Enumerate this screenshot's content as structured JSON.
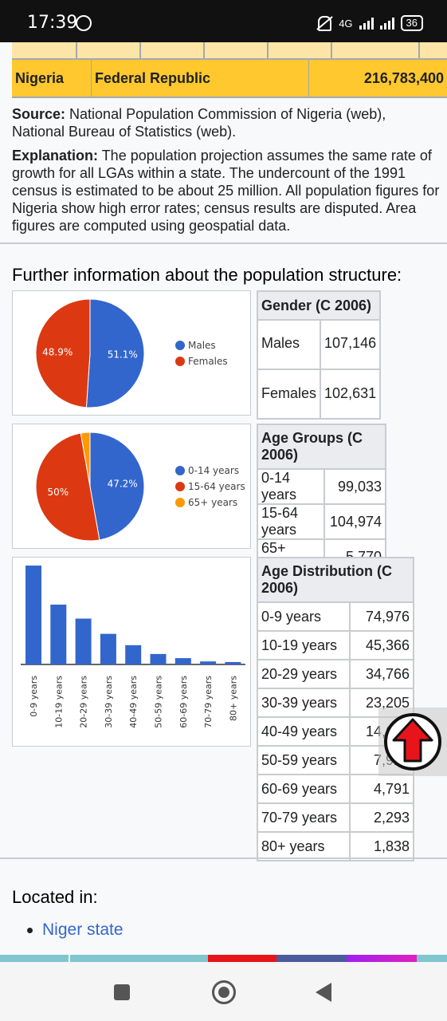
{
  "status_bar": {
    "time": "17:39",
    "network": "4G",
    "battery": "36"
  },
  "population_table": {
    "row": {
      "name": "Nigeria",
      "status": "Federal Republic",
      "population": "216,783,400"
    }
  },
  "source": {
    "label": "Source:",
    "text": " National Population Commission of Nigeria (web), National Bureau of Statistics (web)."
  },
  "explanation": {
    "label": "Explanation:",
    "text": " The population projection assumes the same rate of growth for all LGAs within a state. The undercount of the 1991 census is estimated to be about 25 million. All population figures for Nigeria show high error rates; census results are disputed. Area figures are computed using geospatial data."
  },
  "further_heading": "Further information about the population structure:",
  "gender": {
    "title": "Gender (C 2006)",
    "rows": [
      {
        "label": "Males",
        "value": "107,146"
      },
      {
        "label": "Females",
        "value": "102,631"
      }
    ]
  },
  "age_groups": {
    "title": "Age Groups (C 2006)",
    "rows": [
      {
        "label": "0-14 years",
        "value": "99,033"
      },
      {
        "label": "15-64 years",
        "value": "104,974"
      },
      {
        "label": "65+ years",
        "value": "5,770"
      }
    ]
  },
  "age_distribution": {
    "title": "Age Distribution (C 2006)",
    "rows": [
      {
        "label": "0-9 years",
        "value": "74,976"
      },
      {
        "label": "10-19 years",
        "value": "45,366"
      },
      {
        "label": "20-29 years",
        "value": "34,766"
      },
      {
        "label": "30-39 years",
        "value": "23,205"
      },
      {
        "label": "40-49 years",
        "value": "14,614"
      },
      {
        "label": "50-59 years",
        "value": "7,920"
      },
      {
        "label": "60-69 years",
        "value": "4,791"
      },
      {
        "label": "70-79 years",
        "value": "2,293"
      },
      {
        "label": "80+ years",
        "value": "1,838"
      }
    ]
  },
  "located_in": {
    "heading": "Located in:",
    "items": [
      "Niger state"
    ]
  },
  "colors": {
    "blue": "#3366cc",
    "red": "#dc3912",
    "orange": "#ff9900",
    "highlight": "#ffc82e"
  },
  "chart_data": [
    {
      "type": "pie",
      "labels": [
        "Males",
        "Females"
      ],
      "values": [
        107146,
        102631
      ],
      "slice_labels": [
        "51.1%",
        "48.9%"
      ],
      "colors": [
        "#3366cc",
        "#dc3912"
      ]
    },
    {
      "type": "pie",
      "labels": [
        "0-14 years",
        "15-64 years",
        "65+ years"
      ],
      "values": [
        99033,
        104974,
        5770
      ],
      "slice_labels": [
        "47.2%",
        "50%",
        ""
      ],
      "colors": [
        "#3366cc",
        "#dc3912",
        "#ff9900"
      ]
    },
    {
      "type": "bar",
      "categories": [
        "0-9 years",
        "10-19 years",
        "20-29 years",
        "30-39 years",
        "40-49 years",
        "50-59 years",
        "60-69 years",
        "70-79 years",
        "80+ years"
      ],
      "values": [
        74976,
        45366,
        34766,
        23205,
        14614,
        7920,
        4791,
        2293,
        1838
      ],
      "ylim": [
        0,
        75000
      ],
      "color": "#3366cc"
    }
  ]
}
